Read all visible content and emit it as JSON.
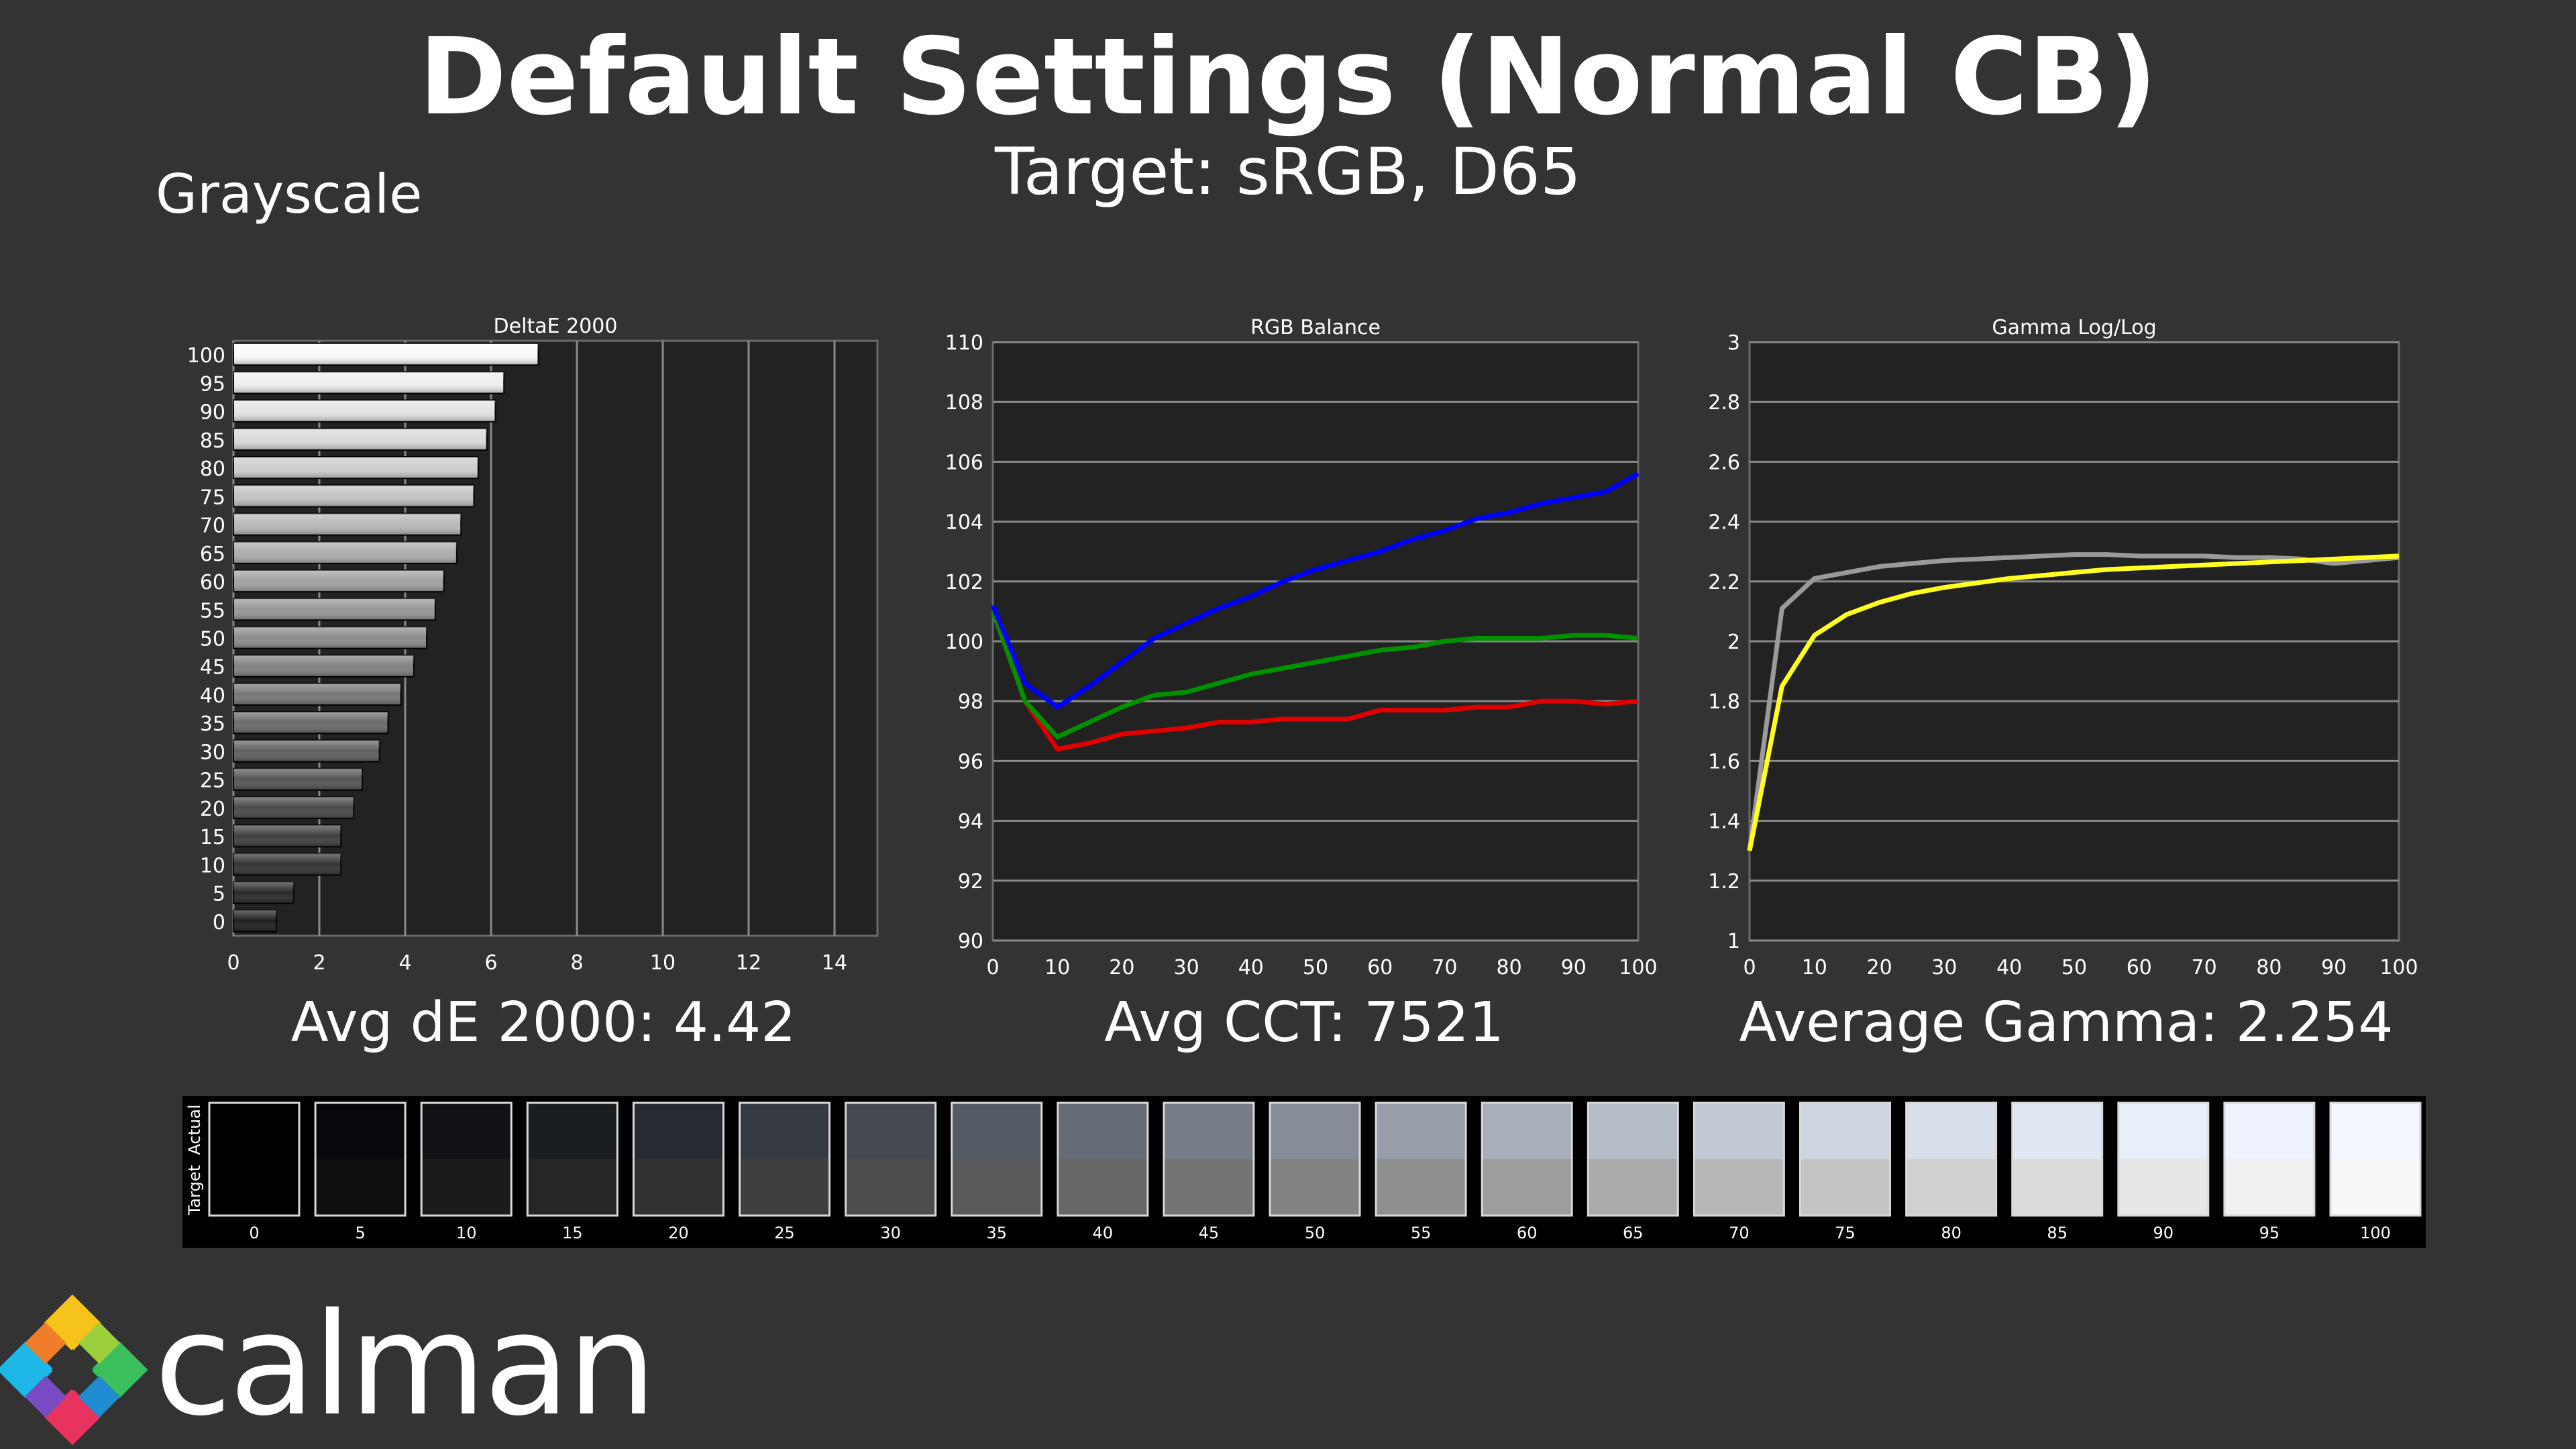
{
  "header": {
    "title": "Default Settings (Normal CB)",
    "subtitle": "Target: sRGB, D65",
    "section": "Grayscale"
  },
  "summaries": {
    "delta": "Avg dE 2000: 4.42",
    "cct": "Avg CCT: 7521",
    "gamma": "Average Gamma: 2.254"
  },
  "logo": {
    "text": "calman"
  },
  "colors": {
    "background": "#333333",
    "plot_bg": "#222222",
    "red": "#e00000",
    "green": "#009000",
    "blue": "#0000ff",
    "gamma_actual": "#9a9a9a",
    "gamma_target": "#ffff20"
  },
  "chart_data": [
    {
      "type": "bar",
      "title": "DeltaE 2000",
      "orientation": "horizontal",
      "categories": [
        "100",
        "95",
        "90",
        "85",
        "80",
        "75",
        "70",
        "65",
        "60",
        "55",
        "50",
        "45",
        "40",
        "35",
        "30",
        "25",
        "20",
        "15",
        "10",
        "5",
        "0"
      ],
      "values": [
        7.1,
        6.3,
        6.1,
        5.9,
        5.7,
        5.6,
        5.3,
        5.2,
        4.9,
        4.7,
        4.5,
        4.2,
        3.9,
        3.6,
        3.4,
        3.0,
        2.8,
        2.5,
        2.5,
        1.4,
        1.0
      ],
      "xlim": [
        0,
        15
      ],
      "xticks": [
        "0",
        "2",
        "4",
        "6",
        "8",
        "10",
        "12",
        "14"
      ],
      "grid": true
    },
    {
      "type": "line",
      "title": "RGB Balance",
      "x": [
        0,
        5,
        10,
        15,
        20,
        25,
        30,
        35,
        40,
        45,
        50,
        55,
        60,
        65,
        70,
        75,
        80,
        85,
        90,
        95,
        100
      ],
      "series": [
        {
          "color": "red",
          "values": [
            101.0,
            98.0,
            96.4,
            96.6,
            96.9,
            97.0,
            97.1,
            97.3,
            97.3,
            97.4,
            97.4,
            97.4,
            97.7,
            97.7,
            97.7,
            97.8,
            97.8,
            98.0,
            98.0,
            97.9,
            98.0
          ]
        },
        {
          "color": "green",
          "values": [
            101.0,
            98.0,
            96.8,
            97.3,
            97.8,
            98.2,
            98.3,
            98.6,
            98.9,
            99.1,
            99.3,
            99.5,
            99.7,
            99.8,
            100.0,
            100.1,
            100.1,
            100.1,
            100.2,
            100.2,
            100.1
          ]
        },
        {
          "color": "blue",
          "values": [
            101.2,
            98.6,
            97.8,
            98.5,
            99.3,
            100.1,
            100.6,
            101.1,
            101.5,
            102.0,
            102.4,
            102.7,
            103.0,
            103.4,
            103.7,
            104.1,
            104.3,
            104.6,
            104.8,
            105.0,
            105.6
          ]
        }
      ],
      "xlim": [
        0,
        100
      ],
      "ylim": [
        90,
        110
      ],
      "xticks": [
        "0",
        "10",
        "20",
        "30",
        "40",
        "50",
        "60",
        "70",
        "80",
        "90",
        "100"
      ],
      "yticks": [
        "90",
        "92",
        "94",
        "96",
        "98",
        "100",
        "102",
        "104",
        "106",
        "108",
        "110"
      ],
      "grid": true
    },
    {
      "type": "line",
      "title": "Gamma Log/Log",
      "x": [
        0,
        5,
        10,
        15,
        20,
        25,
        30,
        35,
        40,
        45,
        50,
        55,
        60,
        65,
        70,
        75,
        80,
        85,
        90,
        95,
        100
      ],
      "series": [
        {
          "color": "gamma_actual",
          "values": [
            1.3,
            2.11,
            2.21,
            2.23,
            2.25,
            2.26,
            2.27,
            2.275,
            2.28,
            2.285,
            2.29,
            2.29,
            2.285,
            2.285,
            2.285,
            2.28,
            2.28,
            2.275,
            2.26,
            2.27,
            2.28
          ]
        },
        {
          "color": "gamma_target",
          "values": [
            1.3,
            1.85,
            2.02,
            2.09,
            2.13,
            2.16,
            2.18,
            2.195,
            2.21,
            2.22,
            2.23,
            2.24,
            2.245,
            2.25,
            2.255,
            2.26,
            2.265,
            2.27,
            2.275,
            2.28,
            2.285
          ]
        }
      ],
      "xlim": [
        0,
        100
      ],
      "ylim": [
        1,
        3
      ],
      "xticks": [
        "0",
        "10",
        "20",
        "30",
        "40",
        "50",
        "60",
        "70",
        "80",
        "90",
        "100"
      ],
      "yticks": [
        "1",
        "1.2",
        "1.4",
        "1.6",
        "1.8",
        "2",
        "2.2",
        "2.4",
        "2.6",
        "2.8",
        "3"
      ],
      "grid": true
    }
  ],
  "swatches": {
    "labels": [
      "Actual",
      "Target"
    ],
    "steps": [
      "0",
      "5",
      "10",
      "15",
      "20",
      "25",
      "30",
      "35",
      "40",
      "45",
      "50",
      "55",
      "60",
      "65",
      "70",
      "75",
      "80",
      "85",
      "90",
      "95",
      "100"
    ],
    "actual": [
      "#000000",
      "#06080b",
      "#101216",
      "#1a1d22",
      "#262a31",
      "#353a42",
      "#454a52",
      "#555b64",
      "#666c77",
      "#767d88",
      "#868d99",
      "#979eaa",
      "#a8afbb",
      "#b5bdc9",
      "#c2c9d5",
      "#ced5e1",
      "#d8dfeb",
      "#e1e8f4",
      "#e8eefa",
      "#eef3ff",
      "#f2f6ff"
    ],
    "target": [
      "#000000",
      "#0f0f0f",
      "#1b1b1b",
      "#262626",
      "#323232",
      "#3f3f3f",
      "#4c4c4c",
      "#595959",
      "#676767",
      "#747474",
      "#828282",
      "#8f8f8f",
      "#9d9d9d",
      "#aaaaaa",
      "#b7b7b7",
      "#c4c4c4",
      "#d0d0d0",
      "#dbdbdb",
      "#e6e6e6",
      "#f0f0f0",
      "#f8f8f8"
    ]
  }
}
